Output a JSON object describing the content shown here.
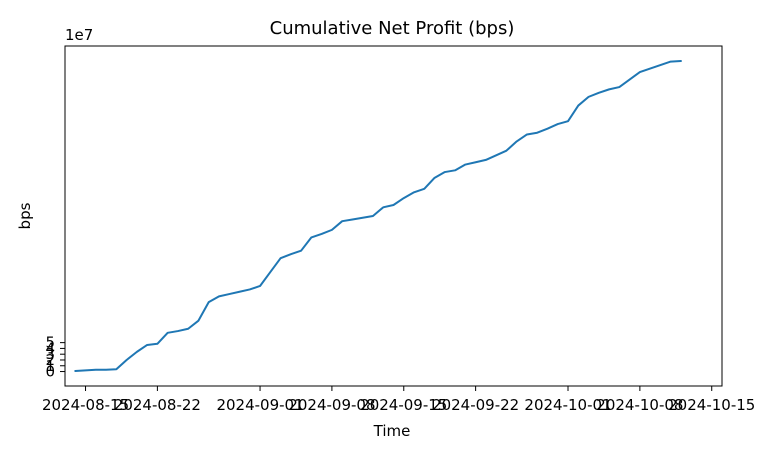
{
  "chart_data": {
    "type": "line",
    "title": "Cumulative Net Profit (bps)",
    "xlabel": "Time",
    "ylabel": "bps",
    "y_offset_text": "1e7",
    "xlim": [
      "2024-08-13",
      "2024-10-16"
    ],
    "ylim": [
      -2.5,
      56.3
    ],
    "x_ticks": [
      "2024-08-15",
      "2024-08-22",
      "2024-09-01",
      "2024-09-08",
      "2024-09-15",
      "2024-09-22",
      "2024-10-01",
      "2024-10-08",
      "2024-10-15"
    ],
    "y_ticks": [
      0,
      1,
      2,
      3,
      4,
      5
    ],
    "grid": false,
    "series": [
      {
        "color": "#1f77b4",
        "x": [
          "2024-08-14",
          "2024-08-15",
          "2024-08-16",
          "2024-08-17",
          "2024-08-18",
          "2024-08-19",
          "2024-08-20",
          "2024-08-21",
          "2024-08-22",
          "2024-08-23",
          "2024-08-24",
          "2024-08-25",
          "2024-08-26",
          "2024-08-27",
          "2024-08-28",
          "2024-08-29",
          "2024-08-30",
          "2024-08-31",
          "2024-09-01",
          "2024-09-02",
          "2024-09-03",
          "2024-09-04",
          "2024-09-05",
          "2024-09-06",
          "2024-09-07",
          "2024-09-08",
          "2024-09-09",
          "2024-09-10",
          "2024-09-11",
          "2024-09-12",
          "2024-09-13",
          "2024-09-14",
          "2024-09-15",
          "2024-09-16",
          "2024-09-17",
          "2024-09-18",
          "2024-09-19",
          "2024-09-20",
          "2024-09-21",
          "2024-09-22",
          "2024-09-23",
          "2024-09-24",
          "2024-09-25",
          "2024-09-26",
          "2024-09-27",
          "2024-09-28",
          "2024-09-29",
          "2024-09-30",
          "2024-10-01",
          "2024-10-02",
          "2024-10-03",
          "2024-10-04",
          "2024-10-05",
          "2024-10-06",
          "2024-10-07",
          "2024-10-08",
          "2024-10-09",
          "2024-10-10",
          "2024-10-11",
          "2024-10-12"
        ],
        "y": [
          0.1,
          0.2,
          0.3,
          0.3,
          0.4,
          2.0,
          3.4,
          4.6,
          4.8,
          6.7,
          7.0,
          7.4,
          8.8,
          12.0,
          13.0,
          13.4,
          13.8,
          14.2,
          14.8,
          17.2,
          19.6,
          20.3,
          20.9,
          23.2,
          23.8,
          24.5,
          26.0,
          26.3,
          26.6,
          26.9,
          28.4,
          28.8,
          30.0,
          31.0,
          31.6,
          33.5,
          34.5,
          34.8,
          35.8,
          36.2,
          36.6,
          37.4,
          38.2,
          39.8,
          41.0,
          41.3,
          42.0,
          42.8,
          43.3,
          46.0,
          47.5,
          48.2,
          48.8,
          49.2,
          50.5,
          51.8,
          52.4,
          53.0,
          53.6,
          53.7
        ]
      }
    ]
  }
}
